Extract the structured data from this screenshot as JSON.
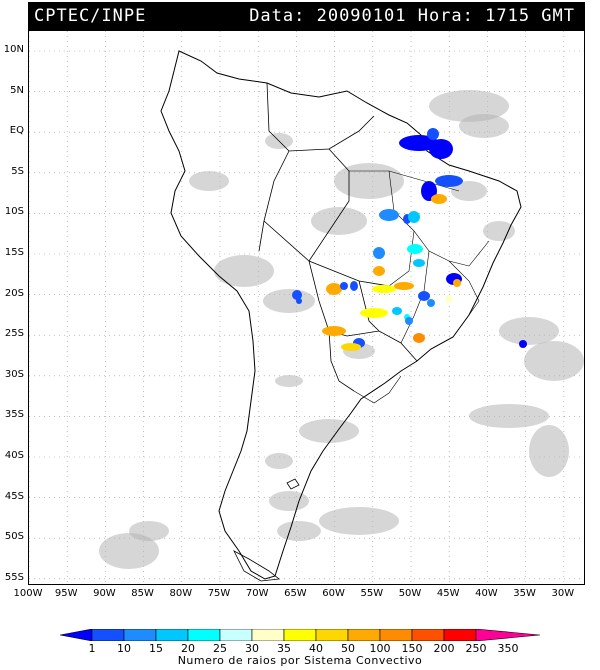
{
  "header": {
    "source": "CPTEC/INPE",
    "datetime": "Data: 20090101 Hora: 1715 GMT"
  },
  "map": {
    "lat_labels": [
      "10N",
      "5N",
      "EQ",
      "5S",
      "10S",
      "15S",
      "20S",
      "25S",
      "30S",
      "35S",
      "40S",
      "45S",
      "50S",
      "55S"
    ],
    "lon_labels": [
      "100W",
      "95W",
      "90W",
      "85W",
      "80W",
      "75W",
      "70W",
      "65W",
      "60W",
      "55W",
      "50W",
      "45W",
      "40W",
      "35W",
      "30W"
    ],
    "cloud_color": "#b4b4b4",
    "coastline_color": "#000000"
  },
  "legend": {
    "caption": "Numero de raios por Sistema Convectivo",
    "values": [
      "1",
      "10",
      "15",
      "20",
      "25",
      "30",
      "35",
      "40",
      "50",
      "100",
      "150",
      "200",
      "250",
      "350"
    ],
    "colors": [
      "#0000ff",
      "#1450ff",
      "#1e8cff",
      "#00c8ff",
      "#00ffff",
      "#c8ffff",
      "#ffffc8",
      "#ffff00",
      "#ffd700",
      "#ffaa00",
      "#ff8c00",
      "#ff5000",
      "#ff0000",
      "#ff0096"
    ]
  }
}
